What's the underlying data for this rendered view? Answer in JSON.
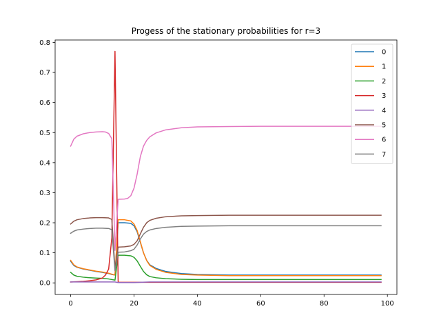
{
  "chart_data": {
    "type": "line",
    "title": "Progess of the stationary probabilities for r=3",
    "xlabel": "",
    "ylabel": "",
    "xlim": [
      -4.9,
      103
    ],
    "ylim": [
      -0.0385,
      0.808
    ],
    "x_ticks": [
      0,
      20,
      40,
      60,
      80,
      100
    ],
    "x_tick_labels": [
      "0",
      "20",
      "40",
      "60",
      "80",
      "100"
    ],
    "y_ticks": [
      0.0,
      0.1,
      0.2,
      0.3,
      0.4,
      0.5,
      0.6,
      0.7,
      0.8
    ],
    "y_tick_labels": [
      "0.0",
      "0.1",
      "0.2",
      "0.3",
      "0.4",
      "0.5",
      "0.6",
      "0.7",
      "0.8"
    ],
    "grid": false,
    "legend_position": "top-right",
    "series": [
      {
        "name": "0",
        "color": "#1f77b4",
        "points": [
          [
            0,
            0.072
          ],
          [
            1,
            0.058
          ],
          [
            2,
            0.052
          ],
          [
            4,
            0.046
          ],
          [
            6,
            0.042
          ],
          [
            8,
            0.038
          ],
          [
            10,
            0.035
          ],
          [
            12,
            0.031
          ],
          [
            13,
            0.028
          ],
          [
            14,
            0.026
          ],
          [
            15,
            0.2
          ],
          [
            17,
            0.2
          ],
          [
            19,
            0.198
          ],
          [
            20,
            0.19
          ],
          [
            21,
            0.17
          ],
          [
            22,
            0.135
          ],
          [
            23,
            0.1
          ],
          [
            24,
            0.075
          ],
          [
            25,
            0.06
          ],
          [
            27,
            0.048
          ],
          [
            30,
            0.038
          ],
          [
            35,
            0.031
          ],
          [
            40,
            0.028
          ],
          [
            50,
            0.026
          ],
          [
            60,
            0.026
          ],
          [
            70,
            0.026
          ],
          [
            80,
            0.026
          ],
          [
            90,
            0.026
          ],
          [
            98,
            0.026
          ]
        ]
      },
      {
        "name": "1",
        "color": "#ff7f0e",
        "points": [
          [
            0,
            0.075
          ],
          [
            1,
            0.06
          ],
          [
            2,
            0.053
          ],
          [
            4,
            0.047
          ],
          [
            6,
            0.043
          ],
          [
            8,
            0.039
          ],
          [
            10,
            0.036
          ],
          [
            12,
            0.032
          ],
          [
            13,
            0.029
          ],
          [
            14,
            0.026
          ],
          [
            15,
            0.21
          ],
          [
            17,
            0.21
          ],
          [
            19,
            0.206
          ],
          [
            20,
            0.196
          ],
          [
            21,
            0.174
          ],
          [
            22,
            0.137
          ],
          [
            23,
            0.1
          ],
          [
            24,
            0.074
          ],
          [
            25,
            0.058
          ],
          [
            27,
            0.045
          ],
          [
            30,
            0.035
          ],
          [
            35,
            0.028
          ],
          [
            40,
            0.026
          ],
          [
            50,
            0.024
          ],
          [
            60,
            0.024
          ],
          [
            70,
            0.024
          ],
          [
            80,
            0.024
          ],
          [
            90,
            0.024
          ],
          [
            98,
            0.024
          ]
        ]
      },
      {
        "name": "2",
        "color": "#2ca02c",
        "points": [
          [
            0,
            0.035
          ],
          [
            1,
            0.026
          ],
          [
            2,
            0.022
          ],
          [
            4,
            0.019
          ],
          [
            6,
            0.017
          ],
          [
            8,
            0.016
          ],
          [
            10,
            0.015
          ],
          [
            12,
            0.013
          ],
          [
            13,
            0.011
          ],
          [
            14,
            0.009
          ],
          [
            15,
            0.092
          ],
          [
            17,
            0.092
          ],
          [
            19,
            0.09
          ],
          [
            20,
            0.085
          ],
          [
            21,
            0.073
          ],
          [
            22,
            0.055
          ],
          [
            23,
            0.038
          ],
          [
            24,
            0.027
          ],
          [
            25,
            0.021
          ],
          [
            27,
            0.017
          ],
          [
            30,
            0.014
          ],
          [
            35,
            0.012
          ],
          [
            40,
            0.011
          ],
          [
            50,
            0.011
          ],
          [
            60,
            0.011
          ],
          [
            70,
            0.011
          ],
          [
            80,
            0.011
          ],
          [
            90,
            0.011
          ],
          [
            98,
            0.011
          ]
        ]
      },
      {
        "name": "3",
        "color": "#d62728",
        "points": [
          [
            0,
            0.003
          ],
          [
            2,
            0.004
          ],
          [
            4,
            0.005
          ],
          [
            6,
            0.007
          ],
          [
            8,
            0.01
          ],
          [
            10,
            0.016
          ],
          [
            11,
            0.026
          ],
          [
            12,
            0.046
          ],
          [
            13,
            0.15
          ],
          [
            14,
            0.77
          ],
          [
            15,
            0.002
          ],
          [
            17,
            0.002
          ],
          [
            20,
            0.002
          ],
          [
            25,
            0.002
          ],
          [
            30,
            0.002
          ],
          [
            40,
            0.002
          ],
          [
            50,
            0.002
          ],
          [
            60,
            0.002
          ],
          [
            70,
            0.002
          ],
          [
            80,
            0.002
          ],
          [
            90,
            0.002
          ],
          [
            98,
            0.002
          ]
        ]
      },
      {
        "name": "4",
        "color": "#9467bd",
        "points": [
          [
            0,
            0.003
          ],
          [
            2,
            0.003
          ],
          [
            4,
            0.003
          ],
          [
            6,
            0.003
          ],
          [
            8,
            0.003
          ],
          [
            10,
            0.003
          ],
          [
            12,
            0.003
          ],
          [
            14,
            0.003
          ],
          [
            15,
            0.001
          ],
          [
            17,
            0.001
          ],
          [
            20,
            0.001
          ],
          [
            22,
            0.002
          ],
          [
            25,
            0.003
          ],
          [
            30,
            0.003
          ],
          [
            40,
            0.003
          ],
          [
            50,
            0.003
          ],
          [
            60,
            0.003
          ],
          [
            70,
            0.003
          ],
          [
            80,
            0.003
          ],
          [
            90,
            0.003
          ],
          [
            98,
            0.003
          ]
        ]
      },
      {
        "name": "5",
        "color": "#8c564b",
        "points": [
          [
            0,
            0.196
          ],
          [
            1,
            0.205
          ],
          [
            2,
            0.21
          ],
          [
            4,
            0.214
          ],
          [
            6,
            0.216
          ],
          [
            8,
            0.217
          ],
          [
            10,
            0.217
          ],
          [
            12,
            0.216
          ],
          [
            13,
            0.211
          ],
          [
            14,
            0.048
          ],
          [
            15,
            0.119
          ],
          [
            17,
            0.12
          ],
          [
            19,
            0.123
          ],
          [
            20,
            0.128
          ],
          [
            21,
            0.14
          ],
          [
            22,
            0.163
          ],
          [
            23,
            0.185
          ],
          [
            24,
            0.2
          ],
          [
            25,
            0.208
          ],
          [
            27,
            0.215
          ],
          [
            30,
            0.22
          ],
          [
            35,
            0.223
          ],
          [
            40,
            0.224
          ],
          [
            50,
            0.225
          ],
          [
            60,
            0.225
          ],
          [
            70,
            0.225
          ],
          [
            80,
            0.225
          ],
          [
            90,
            0.225
          ],
          [
            98,
            0.225
          ]
        ]
      },
      {
        "name": "6",
        "color": "#e377c2",
        "points": [
          [
            0,
            0.455
          ],
          [
            1,
            0.478
          ],
          [
            2,
            0.488
          ],
          [
            4,
            0.496
          ],
          [
            6,
            0.5
          ],
          [
            8,
            0.502
          ],
          [
            10,
            0.503
          ],
          [
            11,
            0.502
          ],
          [
            12,
            0.497
          ],
          [
            13,
            0.48
          ],
          [
            14,
            0.108
          ],
          [
            15,
            0.278
          ],
          [
            17,
            0.279
          ],
          [
            18,
            0.281
          ],
          [
            19,
            0.29
          ],
          [
            20,
            0.315
          ],
          [
            21,
            0.362
          ],
          [
            22,
            0.42
          ],
          [
            23,
            0.455
          ],
          [
            24,
            0.474
          ],
          [
            25,
            0.486
          ],
          [
            27,
            0.499
          ],
          [
            30,
            0.509
          ],
          [
            35,
            0.516
          ],
          [
            40,
            0.519
          ],
          [
            50,
            0.52
          ],
          [
            60,
            0.521
          ],
          [
            70,
            0.521
          ],
          [
            80,
            0.521
          ],
          [
            90,
            0.521
          ],
          [
            98,
            0.521
          ]
        ]
      },
      {
        "name": "7",
        "color": "#7f7f7f",
        "points": [
          [
            0,
            0.165
          ],
          [
            1,
            0.172
          ],
          [
            2,
            0.176
          ],
          [
            4,
            0.179
          ],
          [
            6,
            0.181
          ],
          [
            8,
            0.182
          ],
          [
            10,
            0.182
          ],
          [
            12,
            0.181
          ],
          [
            13,
            0.177
          ],
          [
            14,
            0.04
          ],
          [
            15,
            0.102
          ],
          [
            17,
            0.103
          ],
          [
            19,
            0.107
          ],
          [
            20,
            0.112
          ],
          [
            21,
            0.126
          ],
          [
            22,
            0.146
          ],
          [
            23,
            0.162
          ],
          [
            24,
            0.171
          ],
          [
            25,
            0.176
          ],
          [
            27,
            0.181
          ],
          [
            30,
            0.185
          ],
          [
            35,
            0.188
          ],
          [
            40,
            0.189
          ],
          [
            50,
            0.19
          ],
          [
            60,
            0.19
          ],
          [
            70,
            0.19
          ],
          [
            80,
            0.19
          ],
          [
            90,
            0.19
          ],
          [
            98,
            0.19
          ]
        ]
      }
    ]
  }
}
